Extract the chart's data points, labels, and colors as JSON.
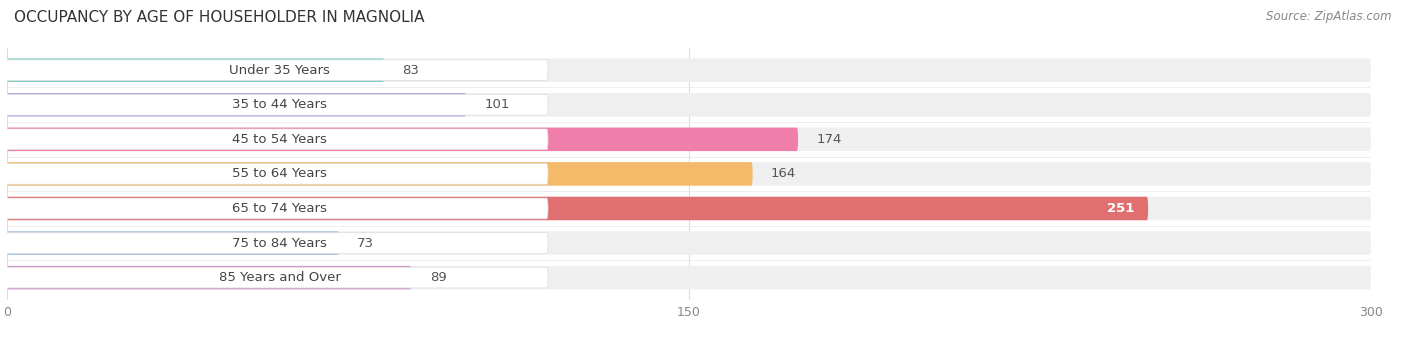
{
  "title": "OCCUPANCY BY AGE OF HOUSEHOLDER IN MAGNOLIA",
  "source": "Source: ZipAtlas.com",
  "categories": [
    "Under 35 Years",
    "35 to 44 Years",
    "45 to 54 Years",
    "55 to 64 Years",
    "65 to 74 Years",
    "75 to 84 Years",
    "85 Years and Over"
  ],
  "values": [
    83,
    101,
    174,
    164,
    251,
    73,
    89
  ],
  "bar_colors": [
    "#7DCFCA",
    "#AAAADD",
    "#F07EAA",
    "#F5B96A",
    "#E07070",
    "#9BBDDD",
    "#CC99CC"
  ],
  "bar_bg_color": "#EFEFEF",
  "xlim": [
    0,
    300
  ],
  "xticks": [
    0,
    150,
    300
  ],
  "title_fontsize": 11,
  "label_fontsize": 9.5,
  "value_fontsize": 9.5,
  "source_fontsize": 8.5,
  "background_color": "#FFFFFF",
  "label_text_color": "#444444",
  "grid_color": "#DDDDDD",
  "value_outside_color": "#555555",
  "value_inside_color": "#FFFFFF"
}
